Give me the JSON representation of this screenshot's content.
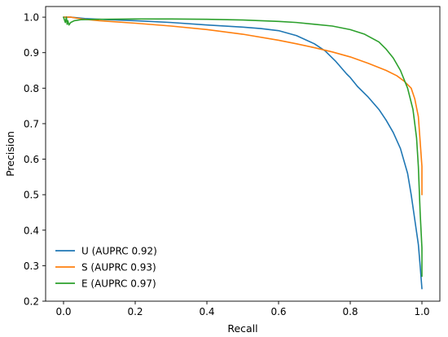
{
  "chart_data": {
    "type": "line",
    "title": "",
    "xlabel": "Recall",
    "ylabel": "Precision",
    "xlim": [
      -0.05,
      1.05
    ],
    "ylim": [
      0.2,
      1.03
    ],
    "xticks": [
      0.0,
      0.2,
      0.4,
      0.6,
      0.8,
      1.0
    ],
    "xtick_labels": [
      "0.0",
      "0.2",
      "0.4",
      "0.6",
      "0.8",
      "1.0"
    ],
    "yticks": [
      0.2,
      0.3,
      0.4,
      0.5,
      0.6,
      0.7,
      0.8,
      0.9,
      1.0
    ],
    "ytick_labels": [
      "0.2",
      "0.3",
      "0.4",
      "0.5",
      "0.6",
      "0.7",
      "0.8",
      "0.9",
      "1.0"
    ],
    "grid": false,
    "legend_position": "lower-left",
    "series": [
      {
        "name": "U (AUPRC 0.92)",
        "color": "#1f77b4",
        "x": [
          0.0,
          0.02,
          0.04,
          0.06,
          0.1,
          0.2,
          0.3,
          0.4,
          0.5,
          0.55,
          0.6,
          0.65,
          0.7,
          0.73,
          0.76,
          0.79,
          0.8,
          0.82,
          0.85,
          0.88,
          0.9,
          0.92,
          0.94,
          0.96,
          0.97,
          0.98,
          0.99,
          0.995,
          1.0
        ],
        "y": [
          1.0,
          1.0,
          0.998,
          0.996,
          0.994,
          0.99,
          0.985,
          0.978,
          0.972,
          0.968,
          0.962,
          0.948,
          0.925,
          0.905,
          0.875,
          0.84,
          0.83,
          0.805,
          0.775,
          0.74,
          0.71,
          0.675,
          0.63,
          0.56,
          0.5,
          0.43,
          0.36,
          0.3,
          0.235
        ]
      },
      {
        "name": "S (AUPRC 0.93)",
        "color": "#ff7f0e",
        "x": [
          0.0,
          0.02,
          0.05,
          0.1,
          0.2,
          0.3,
          0.4,
          0.5,
          0.6,
          0.65,
          0.7,
          0.75,
          0.8,
          0.85,
          0.9,
          0.93,
          0.95,
          0.97,
          0.98,
          0.99,
          0.995,
          1.0,
          1.0
        ],
        "y": [
          1.0,
          1.0,
          0.995,
          0.99,
          0.983,
          0.975,
          0.965,
          0.952,
          0.935,
          0.925,
          0.914,
          0.902,
          0.888,
          0.87,
          0.85,
          0.835,
          0.82,
          0.8,
          0.77,
          0.72,
          0.65,
          0.58,
          0.5
        ]
      },
      {
        "name": "E (AUPRC 0.97)",
        "color": "#2ca02c",
        "x": [
          0.0,
          0.005,
          0.008,
          0.01,
          0.012,
          0.015,
          0.02,
          0.03,
          0.05,
          0.1,
          0.2,
          0.3,
          0.4,
          0.5,
          0.6,
          0.65,
          0.7,
          0.75,
          0.8,
          0.84,
          0.88,
          0.9,
          0.92,
          0.94,
          0.96,
          0.975,
          0.985,
          0.99,
          0.995,
          1.0,
          1.0
        ],
        "y": [
          1.0,
          0.985,
          1.0,
          0.98,
          0.99,
          0.978,
          0.985,
          0.99,
          0.993,
          0.994,
          0.995,
          0.995,
          0.994,
          0.992,
          0.988,
          0.985,
          0.98,
          0.975,
          0.965,
          0.952,
          0.93,
          0.91,
          0.885,
          0.85,
          0.8,
          0.74,
          0.66,
          0.58,
          0.45,
          0.35,
          0.27
        ]
      }
    ]
  }
}
